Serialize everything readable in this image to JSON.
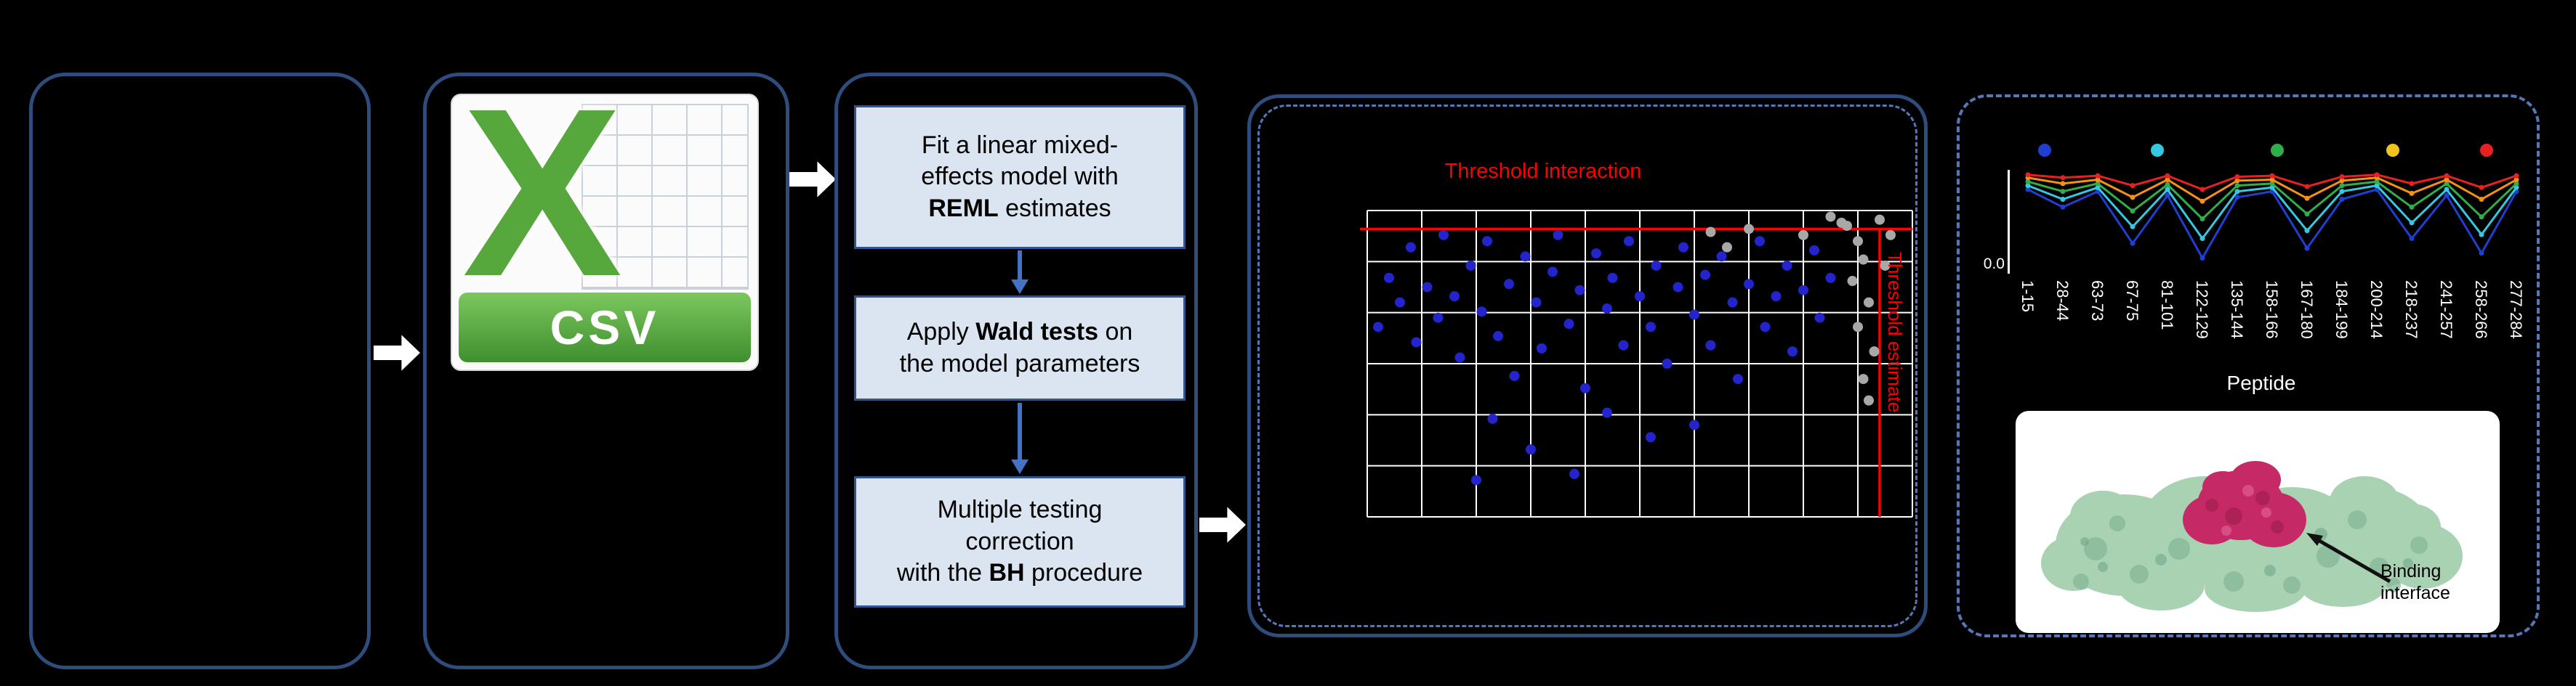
{
  "csv_panel": {
    "letter": "X",
    "file_type": "CSV"
  },
  "workflow_steps": [
    {
      "pre": "Fit a linear mixed-\neffects model with\n",
      "bold": "REML",
      "post": " estimates"
    },
    {
      "pre": "Apply ",
      "bold": "Wald tests",
      "post": " on\nthe model parameters"
    },
    {
      "pre": "Multiple testing\ncorrection\nwith the ",
      "bold": "BH",
      "post": " procedure"
    }
  ],
  "results": {
    "binding_annotation": "Binding interface"
  },
  "chart_data": [
    {
      "type": "scatter",
      "title": "Threshold interaction",
      "side_label": "Threshold estimate",
      "grid": {
        "cols": 10,
        "rows": 6,
        "grid_color": "#ffffff",
        "background": "#000000"
      },
      "thresholds": {
        "color": "#ff0000",
        "y_pct": 6,
        "x_pct": 94
      },
      "series": [
        {
          "name": "significant-peptides",
          "color": "#2424cc",
          "points": [
            [
              2,
              38
            ],
            [
              4,
              22
            ],
            [
              6,
              30
            ],
            [
              8,
              12
            ],
            [
              9,
              43
            ],
            [
              11,
              25
            ],
            [
              13,
              35
            ],
            [
              14,
              8
            ],
            [
              16,
              28
            ],
            [
              17,
              48
            ],
            [
              19,
              18
            ],
            [
              21,
              33
            ],
            [
              22,
              10
            ],
            [
              24,
              41
            ],
            [
              26,
              24
            ],
            [
              27,
              54
            ],
            [
              29,
              15
            ],
            [
              31,
              30
            ],
            [
              32,
              45
            ],
            [
              34,
              20
            ],
            [
              35,
              8
            ],
            [
              37,
              37
            ],
            [
              39,
              26
            ],
            [
              40,
              58
            ],
            [
              42,
              14
            ],
            [
              44,
              32
            ],
            [
              45,
              22
            ],
            [
              47,
              44
            ],
            [
              48,
              10
            ],
            [
              50,
              28
            ],
            [
              52,
              38
            ],
            [
              53,
              18
            ],
            [
              55,
              50
            ],
            [
              57,
              25
            ],
            [
              58,
              12
            ],
            [
              60,
              34
            ],
            [
              62,
              21
            ],
            [
              63,
              44
            ],
            [
              65,
              15
            ],
            [
              67,
              30
            ],
            [
              68,
              55
            ],
            [
              70,
              24
            ],
            [
              72,
              10
            ],
            [
              73,
              38
            ],
            [
              75,
              28
            ],
            [
              77,
              18
            ],
            [
              78,
              46
            ],
            [
              80,
              26
            ],
            [
              82,
              13
            ],
            [
              83,
              35
            ],
            [
              85,
              22
            ],
            [
              23,
              68
            ],
            [
              30,
              78
            ],
            [
              44,
              66
            ],
            [
              52,
              74
            ],
            [
              20,
              88
            ],
            [
              60,
              70
            ],
            [
              38,
              86
            ]
          ]
        },
        {
          "name": "non-significant-peptides",
          "color": "#a8a8a8",
          "points": [
            [
              88,
              5
            ],
            [
              90,
              10
            ],
            [
              91,
              16
            ],
            [
              89,
              23
            ],
            [
              92,
              30
            ],
            [
              90,
              38
            ],
            [
              93,
              46
            ],
            [
              91,
              55
            ],
            [
              92,
              62
            ],
            [
              96,
              8
            ],
            [
              95,
              18
            ],
            [
              63,
              7
            ],
            [
              66,
              12
            ],
            [
              70,
              6
            ],
            [
              94,
              3
            ],
            [
              85,
              2
            ],
            [
              87,
              4
            ],
            [
              80,
              8
            ]
          ]
        }
      ]
    },
    {
      "type": "line",
      "xlabel": "Peptide",
      "y_tick": "0.0",
      "x_labels": [
        "1-15",
        "28-44",
        "63-73",
        "67-75",
        "81-101",
        "122-129",
        "135-144",
        "158-166",
        "167-180",
        "184-199",
        "200-214",
        "218-237",
        "241-257",
        "258-266",
        "277-284"
      ],
      "legend_dots": [
        {
          "color": "#1f3fd0",
          "x_pct": 6.5
        },
        {
          "color": "#35c8e0",
          "x_pct": 28
        },
        {
          "color": "#2fae4a",
          "x_pct": 51
        },
        {
          "color": "#f0c31f",
          "x_pct": 73
        },
        {
          "color": "#e82020",
          "x_pct": 91
        }
      ],
      "series": [
        {
          "name": "series-blue",
          "color": "#1f3fd0",
          "values": [
            0.8,
            0.62,
            0.78,
            0.25,
            0.74,
            0.1,
            0.72,
            0.78,
            0.2,
            0.7,
            0.8,
            0.3,
            0.74,
            0.15,
            0.78
          ]
        },
        {
          "name": "series-cyan",
          "color": "#35c8e0",
          "values": [
            0.84,
            0.7,
            0.82,
            0.42,
            0.8,
            0.3,
            0.78,
            0.82,
            0.38,
            0.78,
            0.84,
            0.46,
            0.8,
            0.34,
            0.82
          ]
        },
        {
          "name": "series-green",
          "color": "#2fae4a",
          "values": [
            0.88,
            0.78,
            0.86,
            0.58,
            0.85,
            0.5,
            0.84,
            0.86,
            0.55,
            0.84,
            0.88,
            0.62,
            0.86,
            0.52,
            0.86
          ]
        },
        {
          "name": "series-orange",
          "color": "#f59116",
          "values": [
            0.92,
            0.86,
            0.9,
            0.72,
            0.9,
            0.68,
            0.89,
            0.9,
            0.71,
            0.89,
            0.92,
            0.76,
            0.9,
            0.7,
            0.9
          ]
        },
        {
          "name": "series-red",
          "color": "#e82020",
          "values": [
            0.95,
            0.92,
            0.94,
            0.84,
            0.94,
            0.8,
            0.93,
            0.94,
            0.83,
            0.93,
            0.95,
            0.86,
            0.94,
            0.82,
            0.94
          ]
        }
      ]
    }
  ]
}
